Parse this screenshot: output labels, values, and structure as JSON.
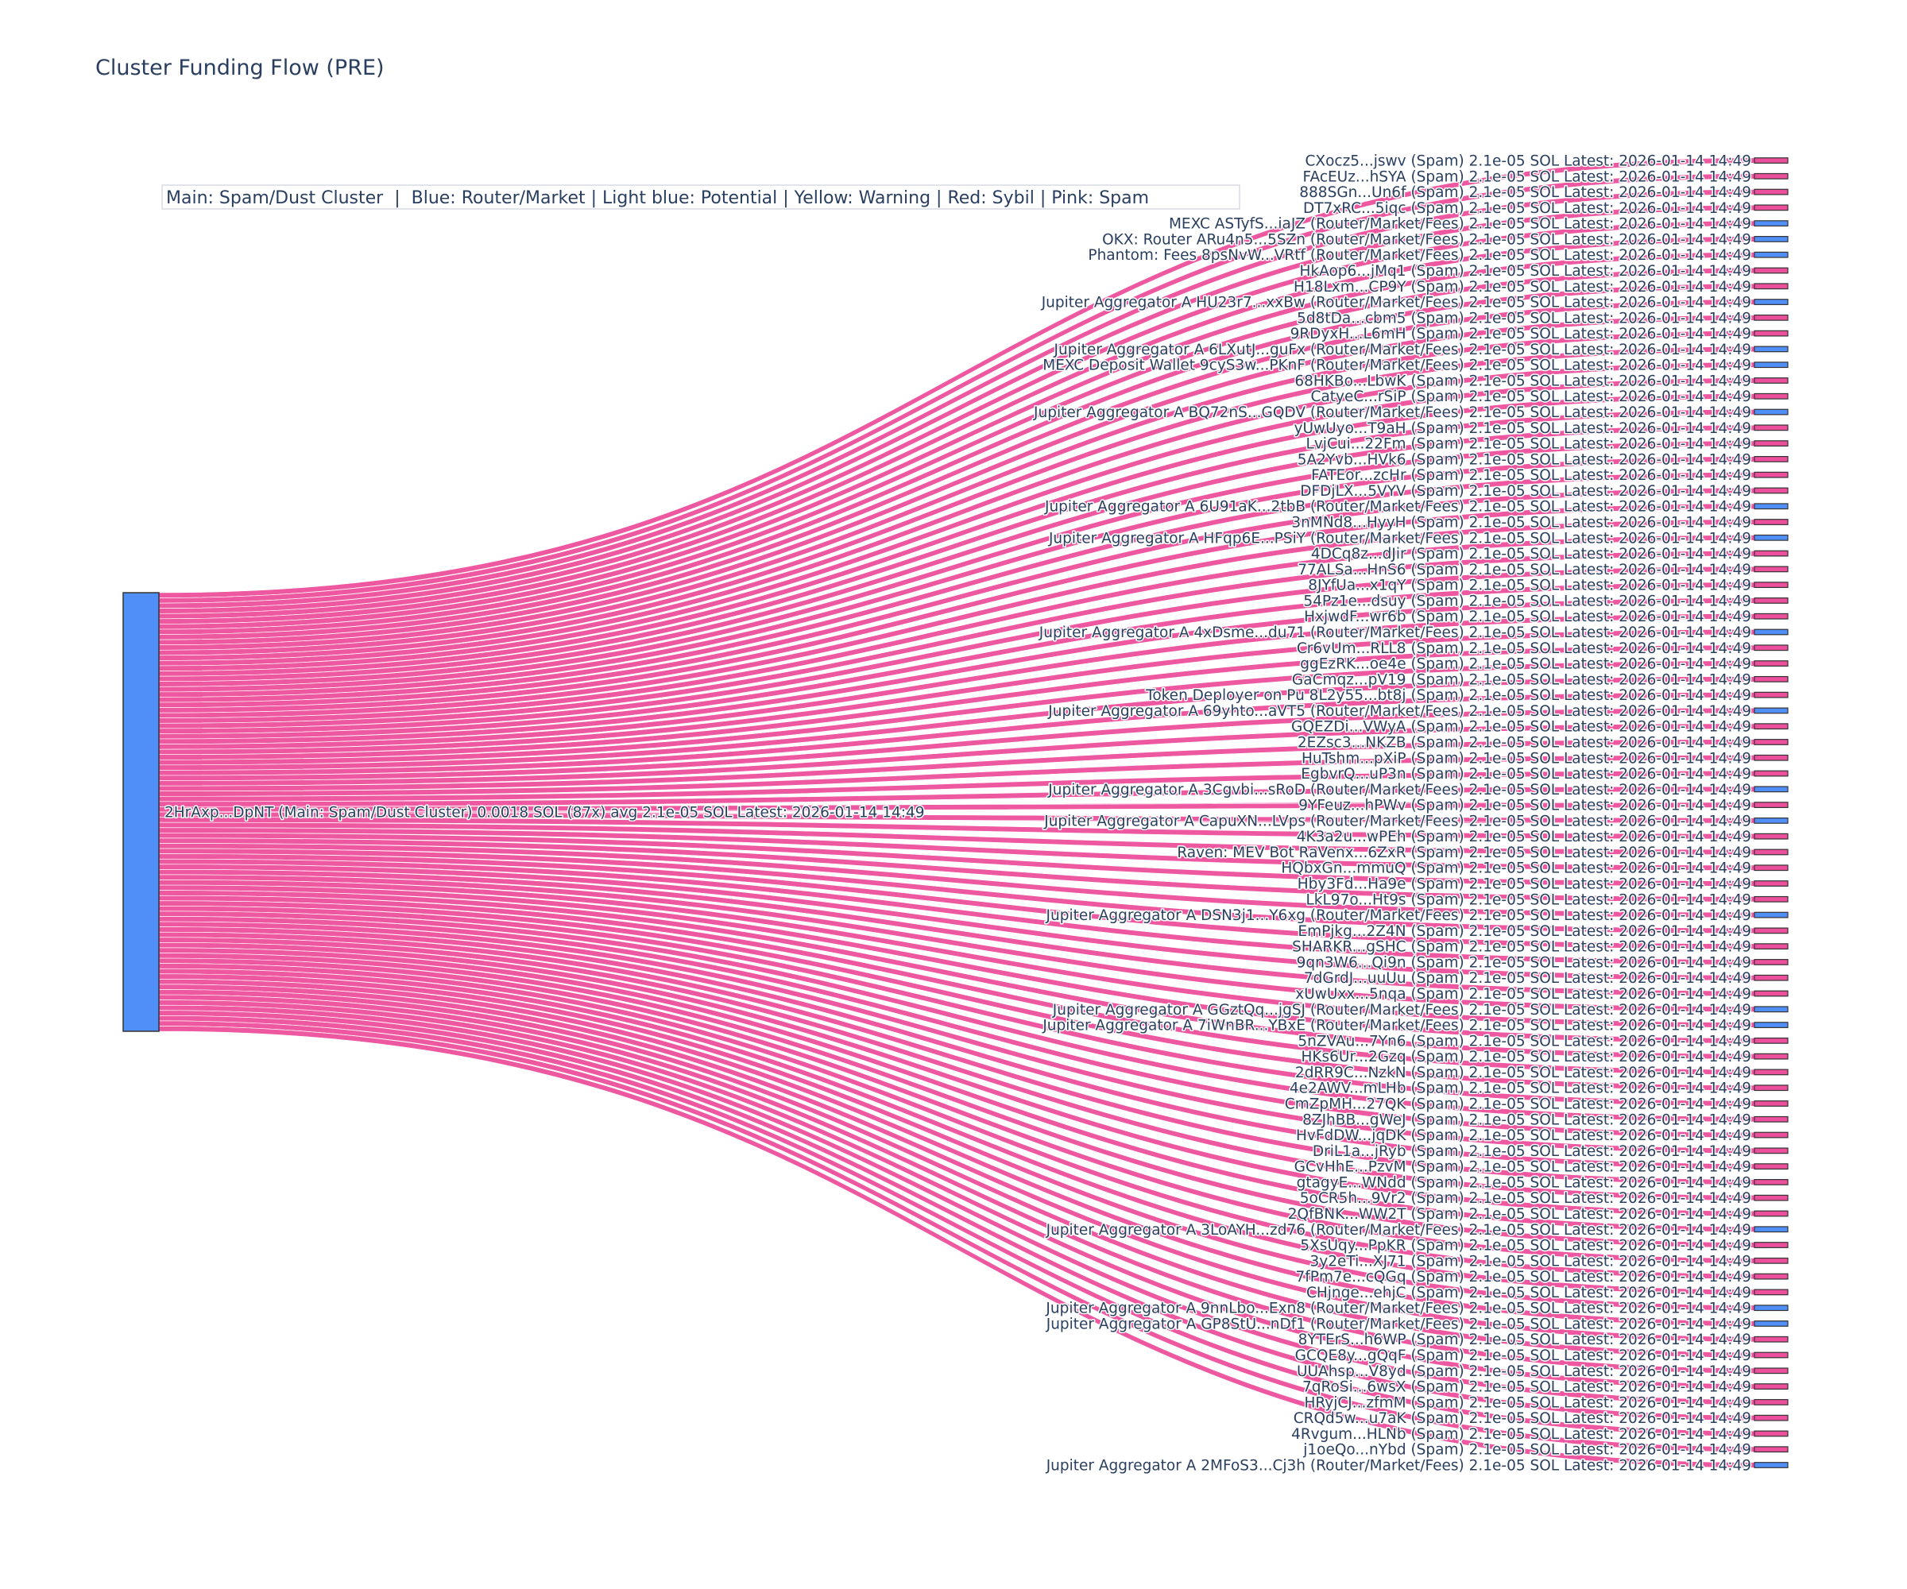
{
  "title": "Cluster Funding Flow (PRE)",
  "legend_text": "Main: Spam/Dust Cluster  |  Blue: Router/Market | Light blue: Potential | Yellow: Warning | Red: Sybil | Pink: Spam",
  "colors": {
    "router": "#4f8ff7",
    "spam": "#ec4f9c",
    "link": "#ec4f9c",
    "source": "#4f8ff7",
    "text": "#2a3f5f"
  },
  "chart_data": {
    "type": "sankey",
    "title": "Cluster Funding Flow (PRE)",
    "link_value": 2.1e-05,
    "source": {
      "label": "2HrAxp...DpNT (Main: Spam/Dust Cluster) 0.0018 SOL (87x) avg 2.1e-05 SOL Latest: 2026-01-14 14:49",
      "kind": "main"
    },
    "suffix": " 2.1e-05 SOL Latest: 2026-01-14 14:49",
    "targets": [
      {
        "name": "CXocz5...jswv (Spam)",
        "kind": "spam"
      },
      {
        "name": "FAcEUz...hSYA (Spam)",
        "kind": "spam"
      },
      {
        "name": "888SGn...Un6f (Spam)",
        "kind": "spam"
      },
      {
        "name": "DT7xRC...5iqc (Spam)",
        "kind": "spam"
      },
      {
        "name": "MEXC ASTyfS...iaJZ (Router/Market/Fees)",
        "kind": "router"
      },
      {
        "name": "OKX: Router ARu4n5...5SZn (Router/Market/Fees)",
        "kind": "router"
      },
      {
        "name": "Phantom: Fees 8psNvW...VRtf (Router/Market/Fees)",
        "kind": "router"
      },
      {
        "name": "HkAop6...jMq1 (Spam)",
        "kind": "spam"
      },
      {
        "name": "H18Lxm...CP9Y (Spam)",
        "kind": "spam"
      },
      {
        "name": "Jupiter Aggregator A HU23r7...xxBw (Router/Market/Fees)",
        "kind": "router"
      },
      {
        "name": "5d8tDa...cbm5 (Spam)",
        "kind": "spam"
      },
      {
        "name": "9RDyxH...L6mH (Spam)",
        "kind": "spam"
      },
      {
        "name": "Jupiter Aggregator A 6LXutJ...guFx (Router/Market/Fees)",
        "kind": "router"
      },
      {
        "name": "MEXC Deposit Wallet 9cyS3w...PKnF (Router/Market/Fees)",
        "kind": "router"
      },
      {
        "name": "68HKBo...LbwK (Spam)",
        "kind": "spam"
      },
      {
        "name": "CatyeC...rSiP (Spam)",
        "kind": "spam"
      },
      {
        "name": "Jupiter Aggregator A BQ72nS...GQDV (Router/Market/Fees)",
        "kind": "router"
      },
      {
        "name": "yUwUyo...T9aH (Spam)",
        "kind": "spam"
      },
      {
        "name": "LvjCui...22Fm (Spam)",
        "kind": "spam"
      },
      {
        "name": "5A2Yvb...HVk6 (Spam)",
        "kind": "spam"
      },
      {
        "name": "FATEor...zcHr (Spam)",
        "kind": "spam"
      },
      {
        "name": "DFDjLX...5VYV (Spam)",
        "kind": "spam"
      },
      {
        "name": "Jupiter Aggregator A 6U91aK...2tbB (Router/Market/Fees)",
        "kind": "router"
      },
      {
        "name": "3nMNd8...HyyH (Spam)",
        "kind": "spam"
      },
      {
        "name": "Jupiter Aggregator A HFqp6E...PSiY (Router/Market/Fees)",
        "kind": "router"
      },
      {
        "name": "4DCq8z...dJir (Spam)",
        "kind": "spam"
      },
      {
        "name": "77ALSa...HnS6 (Spam)",
        "kind": "spam"
      },
      {
        "name": "8JYfUa...x1qY (Spam)",
        "kind": "spam"
      },
      {
        "name": "54Pz1e...dsuy (Spam)",
        "kind": "spam"
      },
      {
        "name": "HxjwdF...wr6b (Spam)",
        "kind": "spam"
      },
      {
        "name": "Jupiter Aggregator A 4xDsme...du71 (Router/Market/Fees)",
        "kind": "router"
      },
      {
        "name": "Cr6vUm...RLL8 (Spam)",
        "kind": "spam"
      },
      {
        "name": "ggEzRK...oe4e (Spam)",
        "kind": "spam"
      },
      {
        "name": "GaCmqz...pV19 (Spam)",
        "kind": "spam"
      },
      {
        "name": "Token Deployer on Pu 8L2y55...bt8j (Spam)",
        "kind": "spam"
      },
      {
        "name": "Jupiter Aggregator A 69yhto...aVT5 (Router/Market/Fees)",
        "kind": "router"
      },
      {
        "name": "GQEZDi...VWyA (Spam)",
        "kind": "spam"
      },
      {
        "name": "2EZsc3...NKZB (Spam)",
        "kind": "spam"
      },
      {
        "name": "HuTshm...pXiP (Spam)",
        "kind": "spam"
      },
      {
        "name": "EgbvrQ...uP3n (Spam)",
        "kind": "spam"
      },
      {
        "name": "Jupiter Aggregator A 3Cgvbi...sRoD (Router/Market/Fees)",
        "kind": "router"
      },
      {
        "name": "9YFeuz...hPWv (Spam)",
        "kind": "spam"
      },
      {
        "name": "Jupiter Aggregator A CapuXN...LVps (Router/Market/Fees)",
        "kind": "router"
      },
      {
        "name": "4K3a2u...wPEh (Spam)",
        "kind": "spam"
      },
      {
        "name": "Raven: MEV Bot RaVenx...6ZxR (Spam)",
        "kind": "spam"
      },
      {
        "name": "HQbxGn...mmuQ (Spam)",
        "kind": "spam"
      },
      {
        "name": "Hby3Fd...Ha9e (Spam)",
        "kind": "spam"
      },
      {
        "name": "LkL97o...Ht9s (Spam)",
        "kind": "spam"
      },
      {
        "name": "Jupiter Aggregator A DSN3j1...Y6xg (Router/Market/Fees)",
        "kind": "router"
      },
      {
        "name": "EmPjkg...2Z4N (Spam)",
        "kind": "spam"
      },
      {
        "name": "SHARKR...gSHC (Spam)",
        "kind": "spam"
      },
      {
        "name": "9qn3W6...Qi9n (Spam)",
        "kind": "spam"
      },
      {
        "name": "7dGrdJ...uuUu (Spam)",
        "kind": "spam"
      },
      {
        "name": "xUwUxx...5nqa (Spam)",
        "kind": "spam"
      },
      {
        "name": "Jupiter Aggregator A GGztQq...jgSJ (Router/Market/Fees)",
        "kind": "router"
      },
      {
        "name": "Jupiter Aggregator A 7iWnBR...YBxE (Router/Market/Fees)",
        "kind": "router"
      },
      {
        "name": "5nZVAu...7Yn6 (Spam)",
        "kind": "spam"
      },
      {
        "name": "HKs6Ur...2Gzq (Spam)",
        "kind": "spam"
      },
      {
        "name": "2dRR9C...NzkN (Spam)",
        "kind": "spam"
      },
      {
        "name": "4e2AWV...mLHb (Spam)",
        "kind": "spam"
      },
      {
        "name": "CmZpMH...27QK (Spam)",
        "kind": "spam"
      },
      {
        "name": "8ZJhBB...gWeJ (Spam)",
        "kind": "spam"
      },
      {
        "name": "HvFdDW...jqDK (Spam)",
        "kind": "spam"
      },
      {
        "name": "DriL1a...jRyb (Spam)",
        "kind": "spam"
      },
      {
        "name": "GCvHhE...PzvM (Spam)",
        "kind": "spam"
      },
      {
        "name": "gtagyE...WNdd (Spam)",
        "kind": "spam"
      },
      {
        "name": "5oCR5h...9Vr2 (Spam)",
        "kind": "spam"
      },
      {
        "name": "2QfBNK...WW2T (Spam)",
        "kind": "spam"
      },
      {
        "name": "Jupiter Aggregator A 3LoAYH...zd76 (Router/Market/Fees)",
        "kind": "router"
      },
      {
        "name": "5XsUqy...PpKR (Spam)",
        "kind": "spam"
      },
      {
        "name": "3y2eTi...XJ71 (Spam)",
        "kind": "spam"
      },
      {
        "name": "7fPm7e...cQGq (Spam)",
        "kind": "spam"
      },
      {
        "name": "CHjnge...ehjC (Spam)",
        "kind": "spam"
      },
      {
        "name": "Jupiter Aggregator A 9nnLbo...Exn8 (Router/Market/Fees)",
        "kind": "router"
      },
      {
        "name": "Jupiter Aggregator A GP8StU...nDf1 (Router/Market/Fees)",
        "kind": "router"
      },
      {
        "name": "8YTErS...h6WP (Spam)",
        "kind": "spam"
      },
      {
        "name": "GCQE8y...gQqF (Spam)",
        "kind": "spam"
      },
      {
        "name": "UUAhsp...V8yd (Spam)",
        "kind": "spam"
      },
      {
        "name": "7qRoSi...6wsX (Spam)",
        "kind": "spam"
      },
      {
        "name": "HRyjCJ...zfmM (Spam)",
        "kind": "spam"
      },
      {
        "name": "CRQd5w...u7aK (Spam)",
        "kind": "spam"
      },
      {
        "name": "4Rvgum...HLNb (Spam)",
        "kind": "spam"
      },
      {
        "name": "j1oeQo...nYbd (Spam)",
        "kind": "spam"
      },
      {
        "name": "Jupiter Aggregator A 2MFoS3...Cj3h (Router/Market/Fees)",
        "kind": "router"
      }
    ]
  }
}
